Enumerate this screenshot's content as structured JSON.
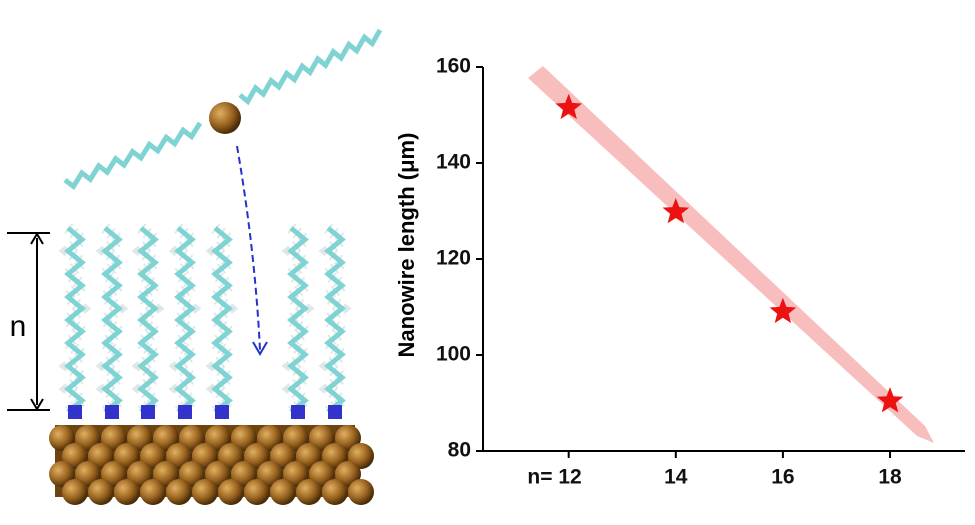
{
  "illustration": {
    "label": "n"
  },
  "chart_data": {
    "type": "scatter",
    "ylabel": "Nanowire length (μm)",
    "x": [
      12,
      14,
      16,
      18
    ],
    "values": [
      151.5,
      129.8,
      109,
      90.4
    ],
    "color": "#ee1111",
    "xlim": [
      10.4,
      19.4
    ],
    "ylim": [
      80,
      160
    ],
    "xticks": [
      {
        "value": 12,
        "label": "n= 12"
      },
      14,
      16,
      18
    ],
    "yticks": [
      80,
      100,
      120,
      140,
      160
    ]
  }
}
